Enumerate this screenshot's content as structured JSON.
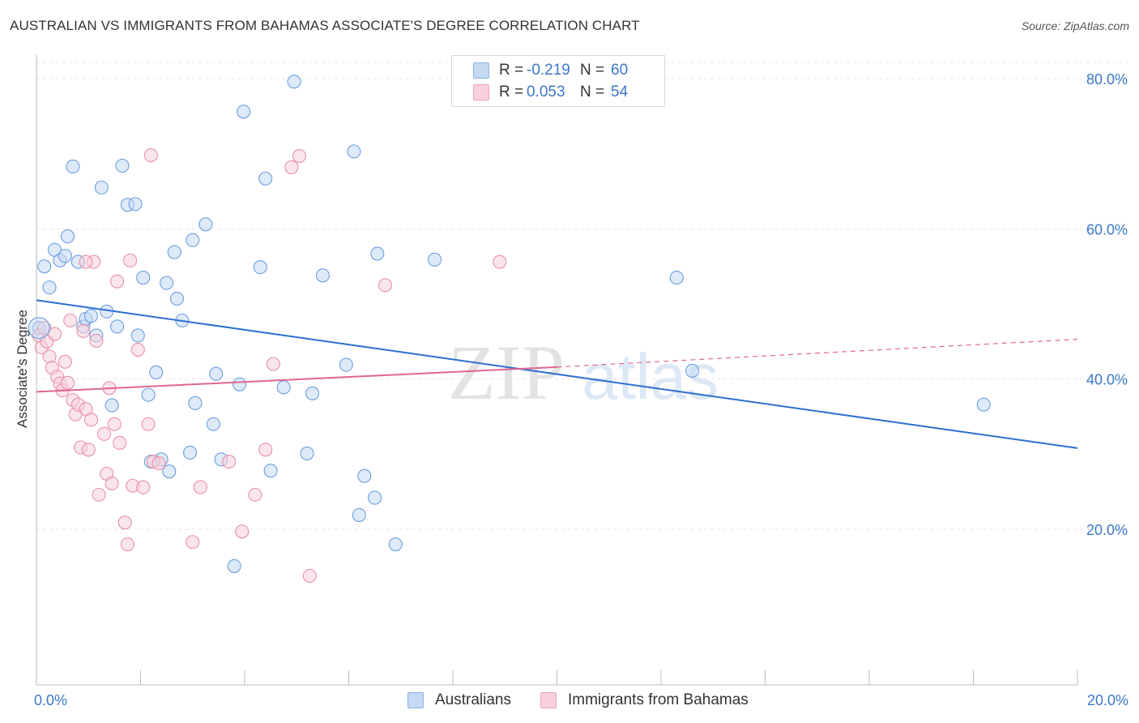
{
  "header": {
    "title": "AUSTRALIAN VS IMMIGRANTS FROM BAHAMAS ASSOCIATE'S DEGREE CORRELATION CHART",
    "source": "Source: ZipAtlas.com"
  },
  "watermark": {
    "part1": "ZIP",
    "part2": "atlas"
  },
  "legend": {
    "rows": [
      {
        "r_label": "R =",
        "r_value": "-0.219",
        "n_label": "N =",
        "n_value": "60",
        "color": "#a8c8f0"
      },
      {
        "r_label": "R =",
        "r_value": "0.053",
        "n_label": "N =",
        "n_value": "54",
        "color": "#f5b8c8"
      }
    ]
  },
  "bottom_legend": {
    "series1": "Australians",
    "series2": "Immigrants from Bahamas"
  },
  "chart_data": {
    "type": "scatter",
    "title": "AUSTRALIAN VS IMMIGRANTS FROM BAHAMAS ASSOCIATE'S DEGREE CORRELATION CHART",
    "ylabel": "Associate's Degree",
    "xlim": [
      0,
      20
    ],
    "ylim": [
      0,
      82
    ],
    "x_tick_labels": [
      "0.0%",
      "20.0%"
    ],
    "y_ticks": [
      {
        "value": 20,
        "label": "20.0%"
      },
      {
        "value": 40,
        "label": "40.0%"
      },
      {
        "value": 60,
        "label": "60.0%"
      },
      {
        "value": 80,
        "label": "80.0%"
      }
    ],
    "grid": true,
    "series": [
      {
        "name": "Australians",
        "color": "#6a9fdf",
        "fill": "#c5d9f3",
        "points": [
          [
            0.15,
            55.0
          ],
          [
            0.25,
            52.2
          ],
          [
            0.35,
            57.2
          ],
          [
            0.45,
            55.8
          ],
          [
            0.55,
            56.4
          ],
          [
            0.6,
            59.0
          ],
          [
            0.7,
            68.3
          ],
          [
            0.8,
            55.6
          ],
          [
            0.9,
            47.0
          ],
          [
            0.95,
            48.0
          ],
          [
            1.05,
            48.4
          ],
          [
            1.15,
            45.8
          ],
          [
            1.25,
            65.5
          ],
          [
            1.35,
            49.0
          ],
          [
            1.45,
            36.5
          ],
          [
            1.55,
            47.0
          ],
          [
            1.65,
            68.4
          ],
          [
            1.75,
            63.2
          ],
          [
            1.9,
            63.3
          ],
          [
            1.95,
            45.8
          ],
          [
            2.05,
            53.5
          ],
          [
            2.15,
            37.9
          ],
          [
            2.2,
            29.0
          ],
          [
            2.3,
            40.9
          ],
          [
            2.4,
            29.3
          ],
          [
            2.5,
            52.8
          ],
          [
            2.55,
            27.7
          ],
          [
            2.65,
            56.9
          ],
          [
            2.7,
            50.7
          ],
          [
            2.8,
            47.8
          ],
          [
            2.95,
            30.2
          ],
          [
            3.0,
            58.5
          ],
          [
            3.05,
            36.8
          ],
          [
            3.25,
            60.6
          ],
          [
            3.4,
            34.0
          ],
          [
            3.45,
            40.7
          ],
          [
            3.55,
            29.3
          ],
          [
            3.8,
            15.1
          ],
          [
            3.9,
            39.3
          ],
          [
            3.98,
            75.6
          ],
          [
            4.3,
            54.9
          ],
          [
            4.4,
            66.7
          ],
          [
            4.5,
            27.8
          ],
          [
            4.75,
            38.9
          ],
          [
            4.95,
            79.6
          ],
          [
            5.2,
            30.1
          ],
          [
            5.3,
            38.1
          ],
          [
            5.5,
            53.8
          ],
          [
            5.95,
            41.9
          ],
          [
            6.1,
            70.3
          ],
          [
            6.2,
            21.9
          ],
          [
            6.3,
            27.1
          ],
          [
            6.5,
            24.2
          ],
          [
            6.55,
            56.7
          ],
          [
            6.9,
            18.0
          ],
          [
            7.65,
            55.9
          ],
          [
            12.3,
            53.5
          ],
          [
            12.6,
            41.1
          ],
          [
            18.2,
            36.6
          ],
          [
            0.05,
            46.8
          ]
        ],
        "trend": {
          "x": [
            0,
            20
          ],
          "y": [
            50.5,
            30.8
          ]
        }
      },
      {
        "name": "Immigrants from Bahamas",
        "color": "#e890a8",
        "fill": "#f8d0dc",
        "points": [
          [
            0.05,
            45.8
          ],
          [
            0.1,
            44.2
          ],
          [
            0.15,
            46.8
          ],
          [
            0.2,
            45.0
          ],
          [
            0.25,
            43.0
          ],
          [
            0.3,
            41.5
          ],
          [
            0.35,
            46.0
          ],
          [
            0.4,
            40.3
          ],
          [
            0.45,
            39.4
          ],
          [
            0.5,
            38.5
          ],
          [
            0.55,
            42.3
          ],
          [
            0.6,
            39.5
          ],
          [
            0.65,
            47.8
          ],
          [
            0.7,
            37.2
          ],
          [
            0.75,
            35.3
          ],
          [
            0.8,
            36.6
          ],
          [
            0.85,
            30.9
          ],
          [
            0.9,
            46.4
          ],
          [
            0.95,
            36.0
          ],
          [
            1.0,
            30.6
          ],
          [
            1.05,
            34.6
          ],
          [
            1.1,
            55.6
          ],
          [
            1.15,
            45.1
          ],
          [
            1.2,
            24.6
          ],
          [
            1.3,
            32.7
          ],
          [
            1.35,
            27.4
          ],
          [
            1.4,
            38.8
          ],
          [
            1.45,
            26.1
          ],
          [
            1.5,
            34.0
          ],
          [
            1.55,
            53.0
          ],
          [
            1.6,
            31.5
          ],
          [
            1.7,
            20.9
          ],
          [
            1.75,
            18.0
          ],
          [
            1.85,
            25.8
          ],
          [
            1.95,
            43.9
          ],
          [
            2.05,
            25.6
          ],
          [
            2.15,
            34.0
          ],
          [
            2.2,
            69.8
          ],
          [
            2.25,
            29.0
          ],
          [
            2.35,
            28.8
          ],
          [
            3.0,
            18.3
          ],
          [
            3.15,
            25.6
          ],
          [
            3.7,
            29.0
          ],
          [
            3.95,
            19.7
          ],
          [
            4.2,
            24.6
          ],
          [
            4.4,
            30.6
          ],
          [
            4.55,
            42.0
          ],
          [
            4.9,
            68.2
          ],
          [
            5.05,
            69.7
          ],
          [
            5.25,
            13.8
          ],
          [
            0.95,
            55.6
          ],
          [
            1.8,
            55.8
          ],
          [
            6.7,
            52.5
          ],
          [
            8.9,
            55.6
          ]
        ],
        "trend_solid": {
          "x": [
            0,
            10
          ],
          "y": [
            38.3,
            41.6
          ]
        },
        "trend_dashed": {
          "x": [
            10,
            20
          ],
          "y": [
            41.6,
            45.3
          ]
        }
      }
    ]
  }
}
